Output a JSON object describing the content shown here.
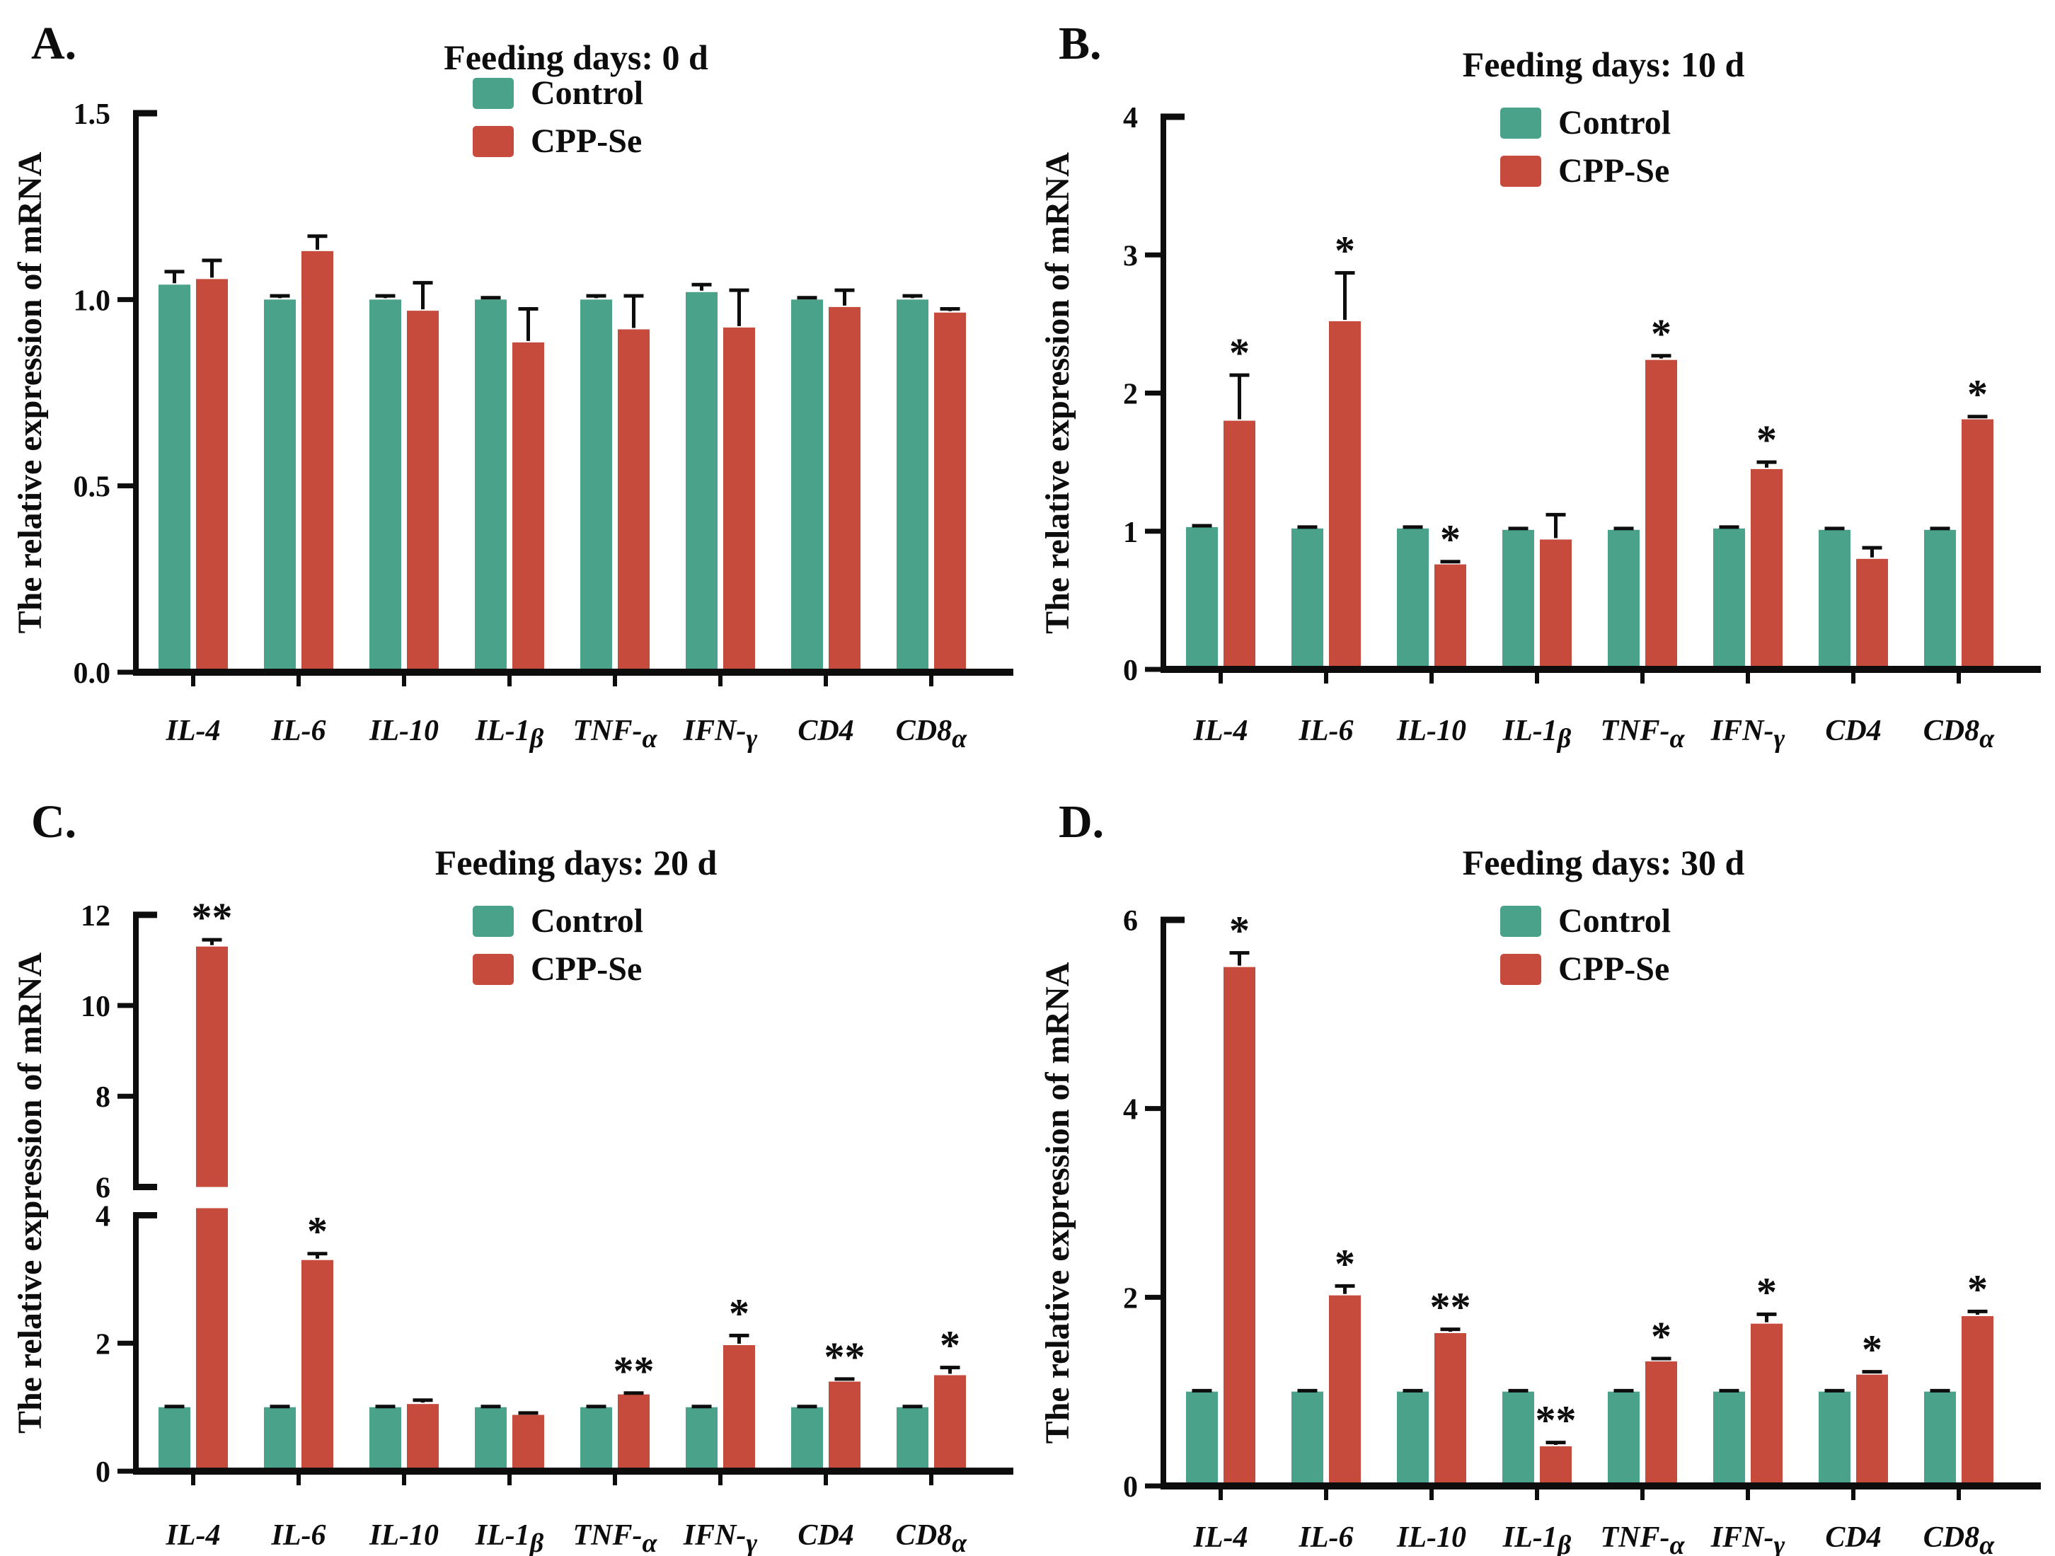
{
  "figure": {
    "colors": {
      "control": "#4AA28B",
      "cppse": "#C74B3D",
      "axis": "#0d0d0d",
      "background": "#ffffff"
    },
    "legend": {
      "control_label": "Control",
      "cppse_label": "CPP-Se"
    },
    "ylabel": "The relative expression of mRNA",
    "categories": [
      "IL-4",
      "IL-6",
      "IL-10",
      "IL-1β",
      "TNF-α",
      "IFN-γ",
      "CD4",
      "CD8α"
    ]
  },
  "chart_data": [
    {
      "panel_label": "A.",
      "type": "bar",
      "title": "Feeding days: 0 d",
      "xlabel": "",
      "ylabel": "The relative expression of mRNA",
      "categories": [
        "IL-4",
        "IL-6",
        "IL-10",
        "IL-1β",
        "TNF-α",
        "IFN-γ",
        "CD4",
        "CD8α"
      ],
      "ylim": [
        0,
        1.5
      ],
      "yticks": [
        "0.0",
        "0.5",
        "1.0",
        "1.5"
      ],
      "grid": false,
      "legend_position": "top-center",
      "series": [
        {
          "name": "Control",
          "color": "#4AA28B",
          "values": [
            1.04,
            1.0,
            1.0,
            1.0,
            1.0,
            1.02,
            1.0,
            1.0
          ],
          "errors": [
            0.035,
            0.01,
            0.01,
            0.005,
            0.01,
            0.02,
            0.005,
            0.01
          ]
        },
        {
          "name": "CPP-Se",
          "color": "#C74B3D",
          "values": [
            1.055,
            1.13,
            0.97,
            0.885,
            0.92,
            0.925,
            0.98,
            0.965
          ],
          "errors": [
            0.05,
            0.04,
            0.075,
            0.09,
            0.09,
            0.1,
            0.045,
            0.01
          ]
        }
      ],
      "significance": [
        "",
        "",
        "",
        "",
        "",
        "",
        "",
        ""
      ]
    },
    {
      "panel_label": "B.",
      "type": "bar",
      "title": "Feeding days: 10 d",
      "xlabel": "",
      "ylabel": "The relative expression of mRNA",
      "categories": [
        "IL-4",
        "IL-6",
        "IL-10",
        "IL-1β",
        "TNF-α",
        "IFN-γ",
        "CD4",
        "CD8α"
      ],
      "ylim": [
        0,
        4
      ],
      "yticks": [
        "0",
        "1",
        "2",
        "3",
        "4"
      ],
      "grid": false,
      "legend_position": "top-center",
      "series": [
        {
          "name": "Control",
          "color": "#4AA28B",
          "values": [
            1.03,
            1.02,
            1.02,
            1.01,
            1.01,
            1.02,
            1.01,
            1.01
          ],
          "errors": [
            0.01,
            0.01,
            0.01,
            0.01,
            0.01,
            0.01,
            0.01,
            0.01
          ]
        },
        {
          "name": "CPP-Se",
          "color": "#C74B3D",
          "values": [
            1.8,
            2.52,
            0.76,
            0.94,
            2.24,
            1.45,
            0.8,
            1.81
          ],
          "errors": [
            0.33,
            0.35,
            0.02,
            0.18,
            0.03,
            0.05,
            0.08,
            0.02
          ]
        }
      ],
      "significance": [
        "*",
        "*",
        "*",
        "",
        "*",
        "*",
        "",
        "*"
      ]
    },
    {
      "panel_label": "C.",
      "type": "bar",
      "title": "Feeding days: 20 d",
      "xlabel": "",
      "ylabel": "The relative expression of mRNA",
      "categories": [
        "IL-4",
        "IL-6",
        "IL-10",
        "IL-1β",
        "TNF-α",
        "IFN-γ",
        "CD4",
        "CD8α"
      ],
      "ylim": [
        0,
        12
      ],
      "axis_break": {
        "lower": [
          0,
          4
        ],
        "upper": [
          6,
          12
        ]
      },
      "yticks_lower": [
        "0",
        "2",
        "4"
      ],
      "yticks_upper": [
        "6",
        "8",
        "10",
        "12"
      ],
      "grid": false,
      "legend_position": "top-center",
      "series": [
        {
          "name": "Control",
          "color": "#4AA28B",
          "values": [
            1.0,
            1.0,
            1.0,
            1.0,
            1.0,
            1.0,
            1.0,
            1.0
          ],
          "errors": [
            0.01,
            0.01,
            0.01,
            0.01,
            0.01,
            0.01,
            0.01,
            0.01
          ]
        },
        {
          "name": "CPP-Se",
          "color": "#C74B3D",
          "values": [
            11.3,
            3.3,
            1.05,
            0.88,
            1.2,
            1.97,
            1.4,
            1.5
          ],
          "errors": [
            0.15,
            0.1,
            0.06,
            0.03,
            0.02,
            0.15,
            0.04,
            0.12
          ]
        }
      ],
      "significance": [
        "**",
        "*",
        "",
        "",
        "**",
        "*",
        "**",
        "*"
      ]
    },
    {
      "panel_label": "D.",
      "type": "bar",
      "title": "Feeding days: 30 d",
      "xlabel": "",
      "ylabel": "The relative expression of mRNA",
      "categories": [
        "IL-4",
        "IL-6",
        "IL-10",
        "IL-1β",
        "TNF-α",
        "IFN-γ",
        "CD4",
        "CD8α"
      ],
      "ylim": [
        0,
        6
      ],
      "yticks": [
        "0",
        "2",
        "4",
        "6"
      ],
      "grid": false,
      "legend_position": "top-center",
      "series": [
        {
          "name": "Control",
          "color": "#4AA28B",
          "values": [
            1.0,
            1.0,
            1.0,
            1.0,
            1.0,
            1.0,
            1.0,
            1.0
          ],
          "errors": [
            0.01,
            0.01,
            0.01,
            0.01,
            0.01,
            0.01,
            0.01,
            0.01
          ]
        },
        {
          "name": "CPP-Se",
          "color": "#C74B3D",
          "values": [
            5.5,
            2.02,
            1.62,
            0.42,
            1.32,
            1.72,
            1.18,
            1.8
          ],
          "errors": [
            0.15,
            0.1,
            0.04,
            0.04,
            0.03,
            0.1,
            0.03,
            0.05
          ]
        }
      ],
      "significance": [
        "*",
        "*",
        "**",
        "**",
        "*",
        "*",
        "*",
        "*"
      ]
    }
  ]
}
